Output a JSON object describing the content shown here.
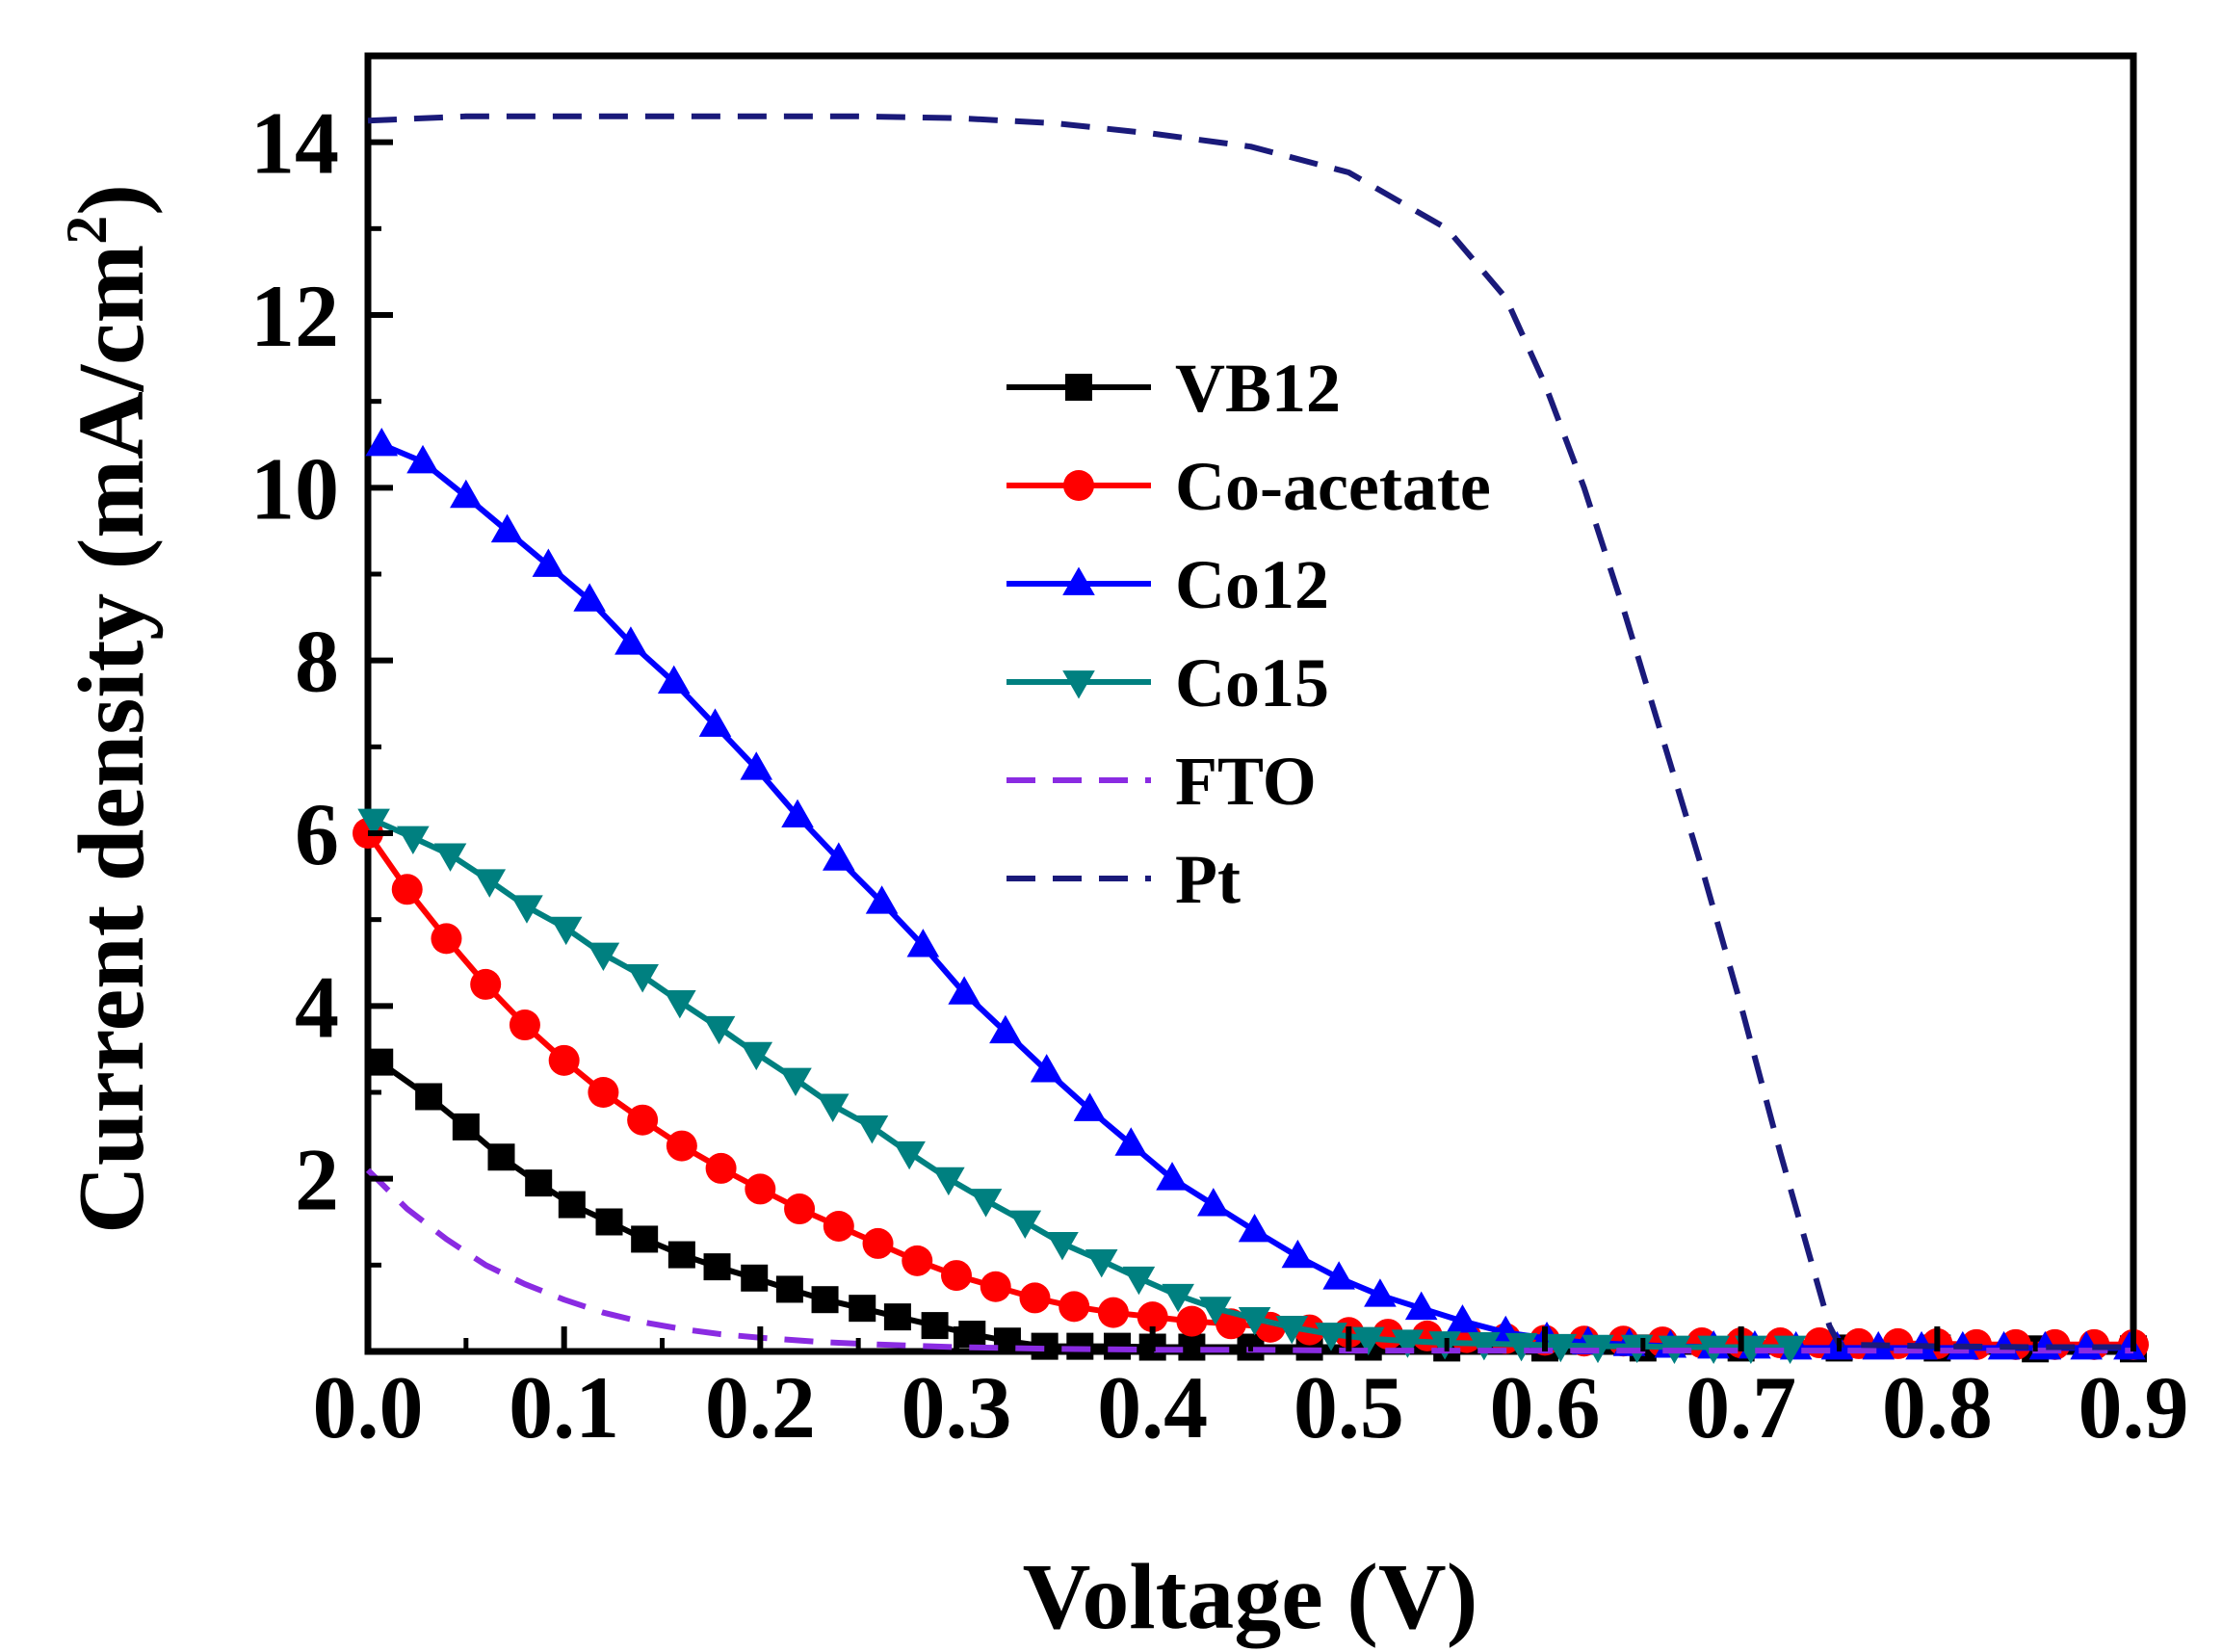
{
  "chart_data": {
    "type": "line",
    "title": "",
    "xlabel": "Voltage (V)",
    "ylabel_prefix": "Current density (mA/cm",
    "ylabel_sup": "2",
    "ylabel_suffix": ")",
    "xlim": [
      0,
      0.9
    ],
    "ylim": [
      0,
      15
    ],
    "xticks": [
      0.0,
      0.1,
      0.2,
      0.3,
      0.4,
      0.5,
      0.6,
      0.7,
      0.8,
      0.9
    ],
    "xtick_labels": [
      "0.0",
      "0.1",
      "0.2",
      "0.3",
      "0.4",
      "0.5",
      "0.6",
      "0.7",
      "0.8",
      "0.9"
    ],
    "yticks": [
      2,
      4,
      6,
      8,
      10,
      12,
      14
    ],
    "ytick_labels": [
      "2",
      "4",
      "6",
      "8",
      "10",
      "12",
      "14"
    ],
    "grid": false,
    "legend_position": "center",
    "series": [
      {
        "name": "VB12",
        "color": "#000000",
        "marker": "square",
        "dash": "solid",
        "x": [
          0.006,
          0.031,
          0.05,
          0.068,
          0.087,
          0.104,
          0.123,
          0.141,
          0.16,
          0.178,
          0.197,
          0.215,
          0.233,
          0.252,
          0.27,
          0.289,
          0.308,
          0.326,
          0.345,
          0.363,
          0.382,
          0.4,
          0.42,
          0.45,
          0.48,
          0.51,
          0.55,
          0.6,
          0.65,
          0.7,
          0.75,
          0.8,
          0.85,
          0.9
        ],
        "y": [
          3.35,
          2.95,
          2.6,
          2.25,
          1.95,
          1.7,
          1.5,
          1.3,
          1.12,
          0.98,
          0.85,
          0.72,
          0.6,
          0.5,
          0.4,
          0.3,
          0.2,
          0.12,
          0.06,
          0.06,
          0.06,
          0.05,
          0.05,
          0.05,
          0.05,
          0.05,
          0.04,
          0.04,
          0.04,
          0.04,
          0.04,
          0.04,
          0.03,
          0.03
        ]
      },
      {
        "name": "Co-acetate",
        "color": "#ff0000",
        "marker": "circle",
        "dash": "solid",
        "x": [
          0.0,
          0.02,
          0.04,
          0.06,
          0.08,
          0.1,
          0.12,
          0.14,
          0.16,
          0.18,
          0.2,
          0.22,
          0.24,
          0.26,
          0.28,
          0.3,
          0.32,
          0.34,
          0.36,
          0.38,
          0.4,
          0.42,
          0.44,
          0.46,
          0.48,
          0.5,
          0.52,
          0.54,
          0.56,
          0.58,
          0.6,
          0.62,
          0.64,
          0.66,
          0.68,
          0.7,
          0.72,
          0.74,
          0.76,
          0.78,
          0.8,
          0.82,
          0.84,
          0.86,
          0.88,
          0.9
        ],
        "y": [
          6.0,
          5.35,
          4.78,
          4.25,
          3.78,
          3.37,
          3.0,
          2.68,
          2.38,
          2.12,
          1.88,
          1.65,
          1.45,
          1.25,
          1.05,
          0.88,
          0.75,
          0.62,
          0.52,
          0.45,
          0.4,
          0.35,
          0.32,
          0.28,
          0.25,
          0.22,
          0.2,
          0.18,
          0.16,
          0.15,
          0.13,
          0.12,
          0.12,
          0.11,
          0.1,
          0.1,
          0.1,
          0.1,
          0.09,
          0.09,
          0.09,
          0.08,
          0.08,
          0.08,
          0.08,
          0.08
        ]
      },
      {
        "name": "Co12",
        "color": "#0000ff",
        "marker": "triangle-up",
        "dash": "solid",
        "x": [
          0.007,
          0.028,
          0.05,
          0.071,
          0.092,
          0.113,
          0.134,
          0.156,
          0.177,
          0.198,
          0.219,
          0.24,
          0.262,
          0.283,
          0.304,
          0.325,
          0.346,
          0.368,
          0.389,
          0.41,
          0.431,
          0.452,
          0.474,
          0.495,
          0.516,
          0.537,
          0.558,
          0.58,
          0.601,
          0.622,
          0.643,
          0.664,
          0.686,
          0.707,
          0.728,
          0.749,
          0.77,
          0.792,
          0.813,
          0.834,
          0.855,
          0.876,
          0.898
        ],
        "y": [
          10.5,
          10.3,
          9.9,
          9.5,
          9.1,
          8.7,
          8.2,
          7.75,
          7.25,
          6.75,
          6.2,
          5.7,
          5.2,
          4.7,
          4.15,
          3.7,
          3.25,
          2.8,
          2.4,
          2.0,
          1.7,
          1.4,
          1.1,
          0.85,
          0.65,
          0.5,
          0.35,
          0.22,
          0.15,
          0.1,
          0.08,
          0.06,
          0.05,
          0.05,
          0.04,
          0.04,
          0.04,
          0.04,
          0.04,
          0.04,
          0.04,
          0.04,
          0.04
        ]
      },
      {
        "name": "Co15",
        "color": "#008080",
        "marker": "triangle-down",
        "dash": "solid",
        "x": [
          0.003,
          0.023,
          0.042,
          0.062,
          0.081,
          0.101,
          0.12,
          0.14,
          0.159,
          0.179,
          0.198,
          0.218,
          0.237,
          0.257,
          0.276,
          0.296,
          0.315,
          0.335,
          0.354,
          0.374,
          0.393,
          0.413,
          0.432,
          0.452,
          0.471,
          0.491,
          0.51,
          0.53,
          0.549,
          0.569,
          0.588,
          0.608,
          0.627,
          0.647,
          0.666,
          0.686,
          0.705,
          0.725
        ],
        "y": [
          6.15,
          5.95,
          5.75,
          5.45,
          5.15,
          4.9,
          4.6,
          4.35,
          4.05,
          3.75,
          3.45,
          3.15,
          2.85,
          2.6,
          2.3,
          2.0,
          1.75,
          1.5,
          1.25,
          1.05,
          0.85,
          0.65,
          0.5,
          0.38,
          0.28,
          0.2,
          0.15,
          0.12,
          0.1,
          0.09,
          0.08,
          0.07,
          0.06,
          0.06,
          0.05,
          0.05,
          0.05,
          0.05
        ]
      },
      {
        "name": "FTO",
        "color": "#8a2be2",
        "marker": "none",
        "dash": "dash",
        "x": [
          0.0,
          0.02,
          0.04,
          0.06,
          0.08,
          0.1,
          0.12,
          0.14,
          0.16,
          0.18,
          0.2,
          0.23,
          0.26,
          0.3,
          0.35,
          0.4,
          0.45,
          0.5,
          0.6,
          0.7,
          0.8,
          0.9
        ],
        "y": [
          2.1,
          1.65,
          1.3,
          1.0,
          0.78,
          0.6,
          0.45,
          0.34,
          0.26,
          0.2,
          0.16,
          0.11,
          0.08,
          0.05,
          0.03,
          0.02,
          0.02,
          0.01,
          0.01,
          0.01,
          0.01,
          0.01
        ]
      },
      {
        "name": "Pt",
        "color": "#1a1a7a",
        "marker": "none",
        "dash": "dash",
        "x": [
          0.0,
          0.05,
          0.1,
          0.15,
          0.2,
          0.25,
          0.3,
          0.35,
          0.4,
          0.45,
          0.5,
          0.55,
          0.58,
          0.6,
          0.62,
          0.64,
          0.66,
          0.68,
          0.7,
          0.72,
          0.735,
          0.745,
          0.75,
          0.8,
          0.85,
          0.9
        ],
        "y": [
          14.25,
          14.3,
          14.3,
          14.3,
          14.3,
          14.3,
          14.28,
          14.22,
          14.1,
          13.95,
          13.65,
          13.0,
          12.2,
          11.2,
          10.0,
          8.6,
          7.1,
          5.6,
          4.0,
          2.3,
          1.1,
          0.3,
          0.08,
          0.06,
          0.05,
          0.05
        ]
      }
    ]
  }
}
